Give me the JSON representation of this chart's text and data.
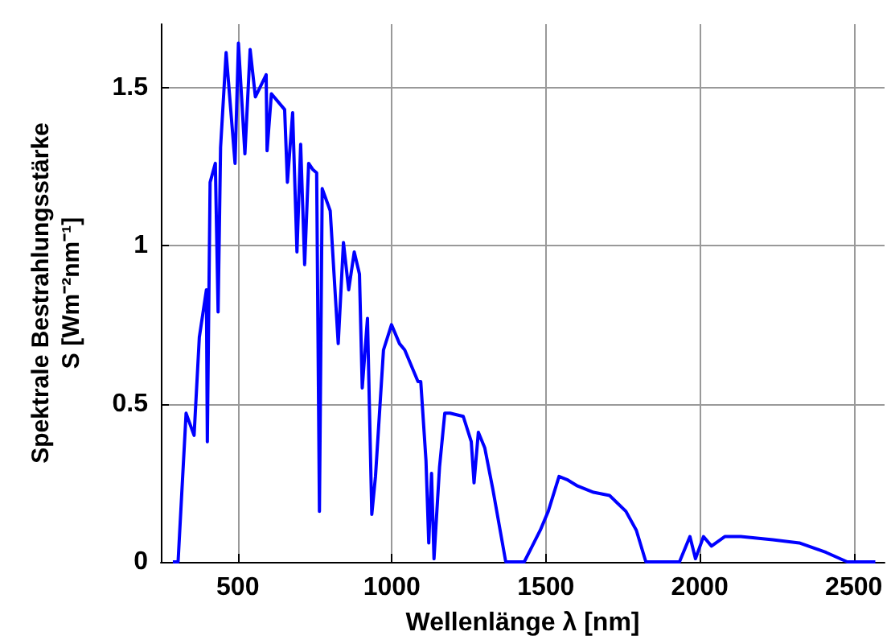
{
  "chart_data": {
    "type": "line",
    "xlabel": "Wellenlänge λ [nm]",
    "ylabel": "Spektrale Bestrahlungsstärke\nS [Wm⁻²nm⁻¹]",
    "x": [
      289,
      306,
      332,
      358,
      375,
      398,
      401,
      410,
      427,
      436,
      444,
      462,
      491,
      502,
      523,
      540,
      557,
      592,
      595,
      609,
      652,
      661,
      678,
      692,
      704,
      717,
      730,
      744,
      756,
      765,
      774,
      800,
      826,
      843,
      860,
      878,
      895,
      904,
      921,
      935,
      947,
      973,
      999,
      1025,
      1042,
      1085,
      1094,
      1111,
      1120,
      1129,
      1137,
      1155,
      1172,
      1189,
      1232,
      1258,
      1267,
      1281,
      1302,
      1328,
      1370,
      1430,
      1456,
      1482,
      1508,
      1543,
      1569,
      1603,
      1655,
      1707,
      1760,
      1794,
      1825,
      1881,
      1934,
      1968,
      1986,
      2012,
      2038,
      2081,
      2133,
      2237,
      2323,
      2410,
      2479,
      2570
    ],
    "series": [
      {
        "color": "#0000ff",
        "values": [
          0,
          0,
          0.47,
          0.4,
          0.71,
          0.86,
          0.38,
          1.2,
          1.26,
          0.79,
          1.31,
          1.61,
          1.26,
          1.64,
          1.29,
          1.62,
          1.47,
          1.54,
          1.3,
          1.48,
          1.43,
          1.2,
          1.42,
          0.98,
          1.32,
          0.94,
          1.26,
          1.24,
          1.23,
          0.16,
          1.18,
          1.11,
          0.69,
          1.01,
          0.86,
          0.98,
          0.91,
          0.55,
          0.77,
          0.15,
          0.27,
          0.67,
          0.75,
          0.69,
          0.67,
          0.57,
          0.57,
          0.32,
          0.06,
          0.28,
          0.01,
          0.3,
          0.47,
          0.47,
          0.46,
          0.38,
          0.25,
          0.41,
          0.36,
          0.23,
          0,
          0,
          0.05,
          0.1,
          0.16,
          0.27,
          0.26,
          0.24,
          0.22,
          0.21,
          0.16,
          0.1,
          0,
          0,
          0,
          0.08,
          0.01,
          0.08,
          0.05,
          0.08,
          0.08,
          0.07,
          0.06,
          0.03,
          0,
          0
        ]
      }
    ],
    "xlim": [
      250,
      2600
    ],
    "ylim": [
      0,
      1.7
    ],
    "xticks": [
      500,
      1000,
      1500,
      2000,
      2500
    ],
    "yticks": [
      0,
      0.5,
      1,
      1.5
    ],
    "grid": true,
    "marker": "none",
    "line_style": "solid"
  }
}
